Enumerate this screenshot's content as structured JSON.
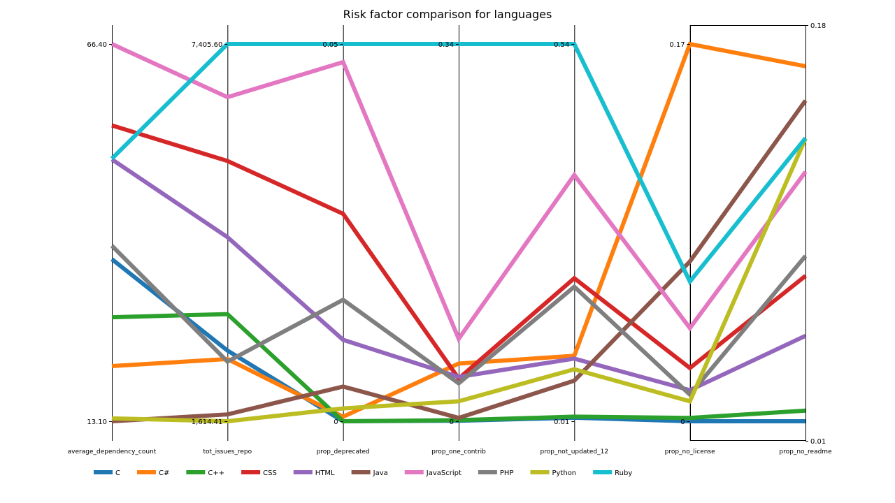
{
  "chart_data": {
    "type": "parallel-coordinates",
    "title": "Risk factor comparison for languages",
    "axes": [
      {
        "name": "average_dependency_count",
        "min": 13.1,
        "max": 66.4,
        "min_label": "13.10",
        "max_label": "66.40"
      },
      {
        "name": "tot_issues_repo",
        "min": 1614.41,
        "max": 7405.6,
        "min_label": "1,614.41",
        "max_label": "7,405.60"
      },
      {
        "name": "prop_deprecated",
        "min": 0,
        "max": 0.05,
        "min_label": "0",
        "max_label": "0.05"
      },
      {
        "name": "prop_one_contrib",
        "min": 0,
        "max": 0.34,
        "min_label": "0",
        "max_label": "0.34"
      },
      {
        "name": "prop_not_updated_12",
        "min": 0.01,
        "max": 0.54,
        "min_label": "0.01",
        "max_label": "0.54"
      },
      {
        "name": "prop_no_license",
        "min": 0,
        "max": 0.17,
        "min_label": "0",
        "max_label": "0.17"
      },
      {
        "name": "prop_no_readme",
        "min": 0.01,
        "max": 0.18,
        "min_label": "0.01",
        "max_label": "0.18"
      }
    ],
    "series": [
      {
        "name": "C",
        "color": "#1f77b4",
        "values": [
          36.0,
          2700,
          0,
          0.0005,
          0.015,
          0,
          0.01
        ]
      },
      {
        "name": "C#",
        "color": "#ff7f0e",
        "values": [
          20.9,
          2570,
          0.0006,
          0.052,
          0.102,
          0.17,
          0.17
        ]
      },
      {
        "name": "C++",
        "color": "#2ca02c",
        "values": [
          27.8,
          3260,
          0,
          0.001,
          0.0165,
          0.0015,
          0.0148
        ]
      },
      {
        "name": "CSS",
        "color": "#d62728",
        "values": [
          54.9,
          5610,
          0.0275,
          0.0385,
          0.211,
          0.024,
          0.0755
        ]
      },
      {
        "name": "HTML",
        "color": "#9467bd",
        "values": [
          50.1,
          4440,
          0.0108,
          0.04,
          0.098,
          0.014,
          0.0485
        ]
      },
      {
        "name": "Java",
        "color": "#8c564b",
        "values": [
          13.1,
          1720,
          0.0046,
          0.003,
          0.067,
          0.072,
          0.1545
        ]
      },
      {
        "name": "JavaScript",
        "color": "#e377c2",
        "values": [
          66.4,
          6590,
          0.0476,
          0.0743,
          0.356,
          0.042,
          0.1224
        ]
      },
      {
        "name": "PHP",
        "color": "#7f7f7f",
        "values": [
          37.9,
          2530,
          0.0161,
          0.0342,
          0.199,
          0.012,
          0.0845
        ]
      },
      {
        "name": "Python",
        "color": "#bcbd22",
        "values": [
          13.5,
          1614.41,
          0.0017,
          0.018,
          0.083,
          0.009,
          0.1374
        ]
      },
      {
        "name": "Ruby",
        "color": "#17becf",
        "values": [
          50.2,
          7405.6,
          0.05,
          0.34,
          0.54,
          0.063,
          0.1376
        ]
      }
    ]
  }
}
